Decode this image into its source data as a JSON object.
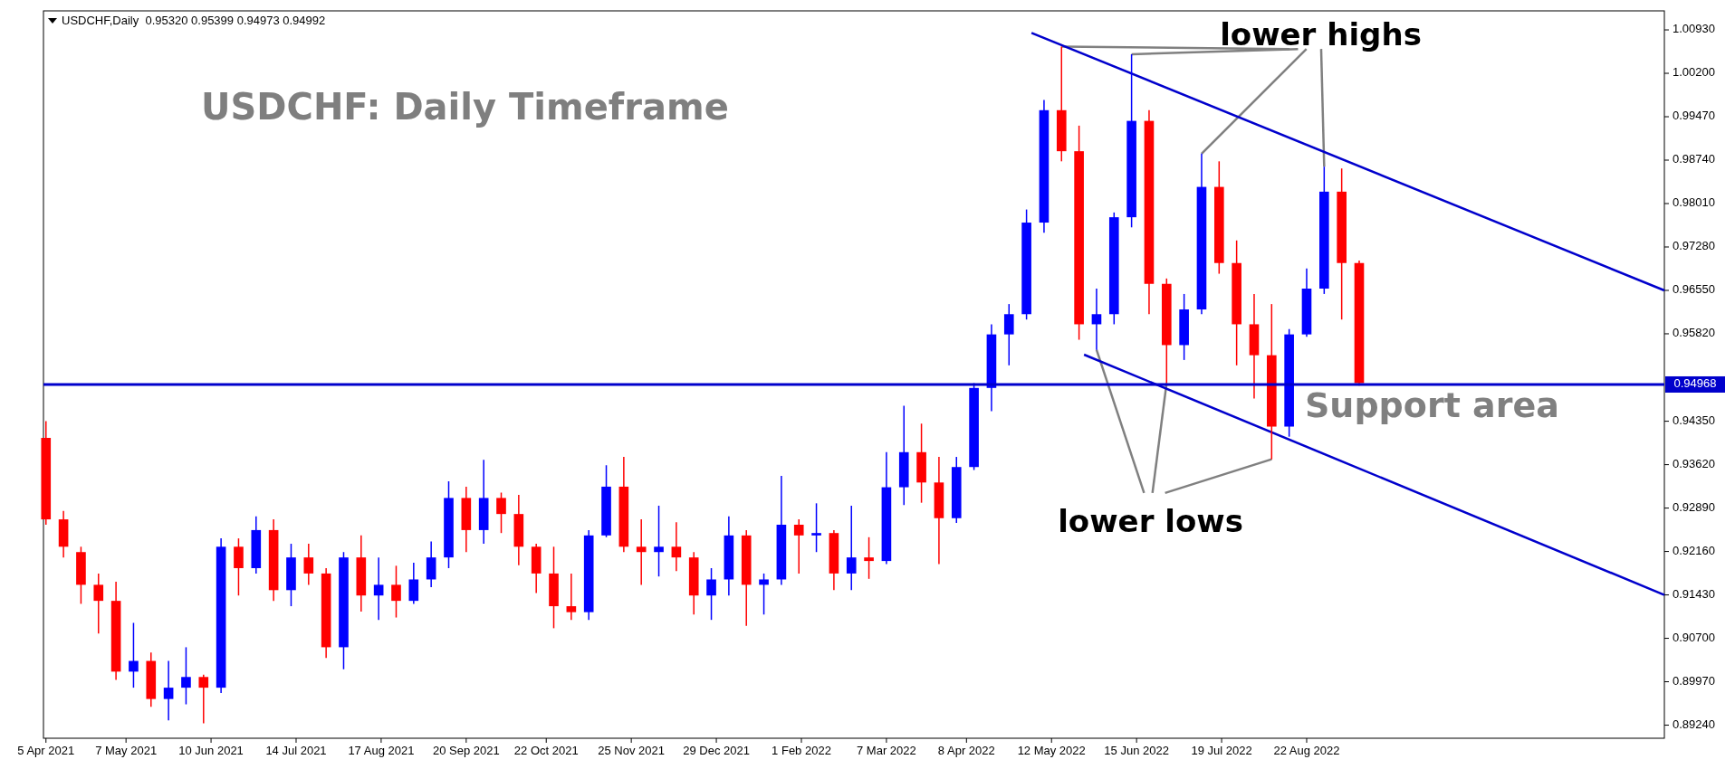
{
  "chart_data": {
    "type": "candlestick",
    "title": "USDCHF,Daily  0.95320 0.95399 0.94973 0.94992",
    "subtitle": "USDCHF: Daily Timeframe",
    "x": [
      "2021-04-05",
      "2021-04-12",
      "2021-04-19",
      "2021-04-26",
      "2021-05-03",
      "2021-05-10",
      "2021-05-17",
      "2021-05-24",
      "2021-05-31",
      "2021-06-07",
      "2021-06-14",
      "2021-06-21",
      "2021-06-28",
      "2021-07-05",
      "2021-07-12",
      "2021-07-19",
      "2021-07-26",
      "2021-08-02",
      "2021-08-09",
      "2021-08-16",
      "2021-08-23",
      "2021-08-30",
      "2021-09-06",
      "2021-09-13",
      "2021-09-20",
      "2021-09-27",
      "2021-10-04",
      "2021-10-11",
      "2021-10-18",
      "2021-10-25",
      "2021-11-01",
      "2021-11-08",
      "2021-11-15",
      "2021-11-22",
      "2021-11-29",
      "2021-12-06",
      "2021-12-13",
      "2021-12-20",
      "2021-12-27",
      "2022-01-03",
      "2022-01-10",
      "2022-01-17",
      "2022-01-24",
      "2022-01-31",
      "2022-02-07",
      "2022-02-14",
      "2022-02-21",
      "2022-02-28",
      "2022-03-07",
      "2022-03-14",
      "2022-03-21",
      "2022-03-28",
      "2022-04-04",
      "2022-04-11",
      "2022-04-18",
      "2022-04-25",
      "2022-05-02",
      "2022-05-09",
      "2022-05-16",
      "2022-05-23",
      "2022-05-30",
      "2022-06-06",
      "2022-06-13",
      "2022-06-20",
      "2022-06-27",
      "2022-07-04",
      "2022-07-11",
      "2022-07-18",
      "2022-07-25",
      "2022-08-01",
      "2022-08-08",
      "2022-08-15",
      "2022-08-22",
      "2022-08-29",
      "2022-09-05",
      "2022-09-12"
    ],
    "ohlc": [
      [
        0.9407,
        0.9435,
        0.9261,
        0.927
      ],
      [
        0.927,
        0.9284,
        0.9206,
        0.9224
      ],
      [
        0.9215,
        0.9224,
        0.9128,
        0.916
      ],
      [
        0.916,
        0.9179,
        0.9078,
        0.9133
      ],
      [
        0.9133,
        0.9165,
        0.9,
        0.9014
      ],
      [
        0.9014,
        0.9096,
        0.8987,
        0.9032
      ],
      [
        0.9032,
        0.9046,
        0.8955,
        0.8968
      ],
      [
        0.8968,
        0.9032,
        0.8932,
        0.8987
      ],
      [
        0.8987,
        0.9055,
        0.8959,
        0.9005
      ],
      [
        0.9005,
        0.9009,
        0.8927,
        0.8987
      ],
      [
        0.8987,
        0.9238,
        0.8978,
        0.9224
      ],
      [
        0.9224,
        0.9238,
        0.9142,
        0.9188
      ],
      [
        0.9188,
        0.9275,
        0.9179,
        0.9252
      ],
      [
        0.9252,
        0.927,
        0.9133,
        0.9151
      ],
      [
        0.9151,
        0.9229,
        0.9124,
        0.9206
      ],
      [
        0.9206,
        0.9229,
        0.916,
        0.9179
      ],
      [
        0.9179,
        0.9188,
        0.9037,
        0.9055
      ],
      [
        0.9055,
        0.9215,
        0.9018,
        0.9206
      ],
      [
        0.9206,
        0.9243,
        0.9115,
        0.9142
      ],
      [
        0.9142,
        0.9206,
        0.9101,
        0.916
      ],
      [
        0.916,
        0.9192,
        0.9105,
        0.9133
      ],
      [
        0.9133,
        0.9197,
        0.9128,
        0.9169
      ],
      [
        0.9169,
        0.9233,
        0.9156,
        0.9206
      ],
      [
        0.9206,
        0.9334,
        0.9188,
        0.9306
      ],
      [
        0.9306,
        0.9325,
        0.9215,
        0.9252
      ],
      [
        0.9252,
        0.937,
        0.9229,
        0.9306
      ],
      [
        0.9306,
        0.9315,
        0.9247,
        0.9279
      ],
      [
        0.9279,
        0.9311,
        0.9193,
        0.9224
      ],
      [
        0.9224,
        0.9229,
        0.9146,
        0.9179
      ],
      [
        0.9179,
        0.9224,
        0.9087,
        0.9124
      ],
      [
        0.9124,
        0.9179,
        0.9101,
        0.9114
      ],
      [
        0.9114,
        0.9252,
        0.9101,
        0.9243
      ],
      [
        0.9243,
        0.9361,
        0.924,
        0.9325
      ],
      [
        0.9325,
        0.9375,
        0.9215,
        0.9224
      ],
      [
        0.9224,
        0.927,
        0.916,
        0.9215
      ],
      [
        0.9215,
        0.9293,
        0.9174,
        0.9224
      ],
      [
        0.9224,
        0.9265,
        0.9183,
        0.9206
      ],
      [
        0.9206,
        0.9215,
        0.911,
        0.9142
      ],
      [
        0.9142,
        0.9188,
        0.9101,
        0.9169
      ],
      [
        0.9169,
        0.9275,
        0.9142,
        0.9243
      ],
      [
        0.9243,
        0.9252,
        0.9091,
        0.916
      ],
      [
        0.916,
        0.9179,
        0.911,
        0.9169
      ],
      [
        0.9169,
        0.9343,
        0.916,
        0.9261
      ],
      [
        0.9261,
        0.927,
        0.9179,
        0.9243
      ],
      [
        0.9243,
        0.9297,
        0.9215,
        0.9247
      ],
      [
        0.9247,
        0.9252,
        0.9151,
        0.9179
      ],
      [
        0.9179,
        0.9293,
        0.9151,
        0.9206
      ],
      [
        0.9206,
        0.924,
        0.917,
        0.92
      ],
      [
        0.92,
        0.9383,
        0.9195,
        0.9324
      ],
      [
        0.9324,
        0.9461,
        0.9294,
        0.9383
      ],
      [
        0.9383,
        0.9431,
        0.9298,
        0.9332
      ],
      [
        0.9332,
        0.9375,
        0.9195,
        0.9272
      ],
      [
        0.9272,
        0.9375,
        0.9264,
        0.9358
      ],
      [
        0.9358,
        0.9499,
        0.9353,
        0.9491
      ],
      [
        0.9491,
        0.9598,
        0.9452,
        0.9581
      ],
      [
        0.9581,
        0.9632,
        0.9529,
        0.9615
      ],
      [
        0.9615,
        0.9791,
        0.9606,
        0.9769
      ],
      [
        0.9769,
        0.9975,
        0.9752,
        0.9958
      ],
      [
        0.9958,
        1.0065,
        0.9872,
        0.9889
      ],
      [
        0.9889,
        0.9932,
        0.9572,
        0.9598
      ],
      [
        0.9598,
        0.9658,
        0.9555,
        0.9615
      ],
      [
        0.9615,
        0.9786,
        0.9598,
        0.9778
      ],
      [
        0.9778,
        1.0052,
        0.9761,
        0.994
      ],
      [
        0.994,
        0.9958,
        0.9615,
        0.9666
      ],
      [
        0.9666,
        0.9675,
        0.9499,
        0.9563
      ],
      [
        0.9563,
        0.9649,
        0.9538,
        0.9623
      ],
      [
        0.9623,
        0.9885,
        0.9615,
        0.9829
      ],
      [
        0.9829,
        0.9872,
        0.9683,
        0.9701
      ],
      [
        0.9701,
        0.9739,
        0.9529,
        0.9598
      ],
      [
        0.9598,
        0.9649,
        0.9473,
        0.9546
      ],
      [
        0.9546,
        0.9632,
        0.9371,
        0.9426
      ],
      [
        0.9426,
        0.959,
        0.9409,
        0.9581
      ],
      [
        0.9581,
        0.9692,
        0.9577,
        0.9658
      ],
      [
        0.9658,
        0.9863,
        0.9649,
        0.9821
      ],
      [
        0.9821,
        0.986,
        0.9606,
        0.9701
      ],
      [
        0.9701,
        0.9705,
        0.9495,
        0.9499
      ]
    ],
    "colors": [
      "#ff0000",
      "#ff0000",
      "#ff0000",
      "#ff0000",
      "#ff0000",
      "#0000ff",
      "#ff0000",
      "#0000ff",
      "#0000ff",
      "#ff0000",
      "#0000ff",
      "#ff0000",
      "#0000ff",
      "#ff0000",
      "#0000ff",
      "#ff0000",
      "#ff0000",
      "#0000ff",
      "#ff0000",
      "#0000ff",
      "#ff0000",
      "#0000ff",
      "#0000ff",
      "#0000ff",
      "#ff0000",
      "#0000ff",
      "#ff0000",
      "#ff0000",
      "#ff0000",
      "#ff0000",
      "#ff0000",
      "#0000ff",
      "#0000ff",
      "#ff0000",
      "#ff0000",
      "#0000ff",
      "#ff0000",
      "#ff0000",
      "#0000ff",
      "#0000ff",
      "#ff0000",
      "#0000ff",
      "#0000ff",
      "#ff0000",
      "#0000ff",
      "#ff0000",
      "#0000ff",
      "#ff0000",
      "#0000ff",
      "#0000ff",
      "#ff0000",
      "#ff0000",
      "#0000ff",
      "#0000ff",
      "#0000ff",
      "#0000ff",
      "#0000ff",
      "#0000ff",
      "#ff0000",
      "#ff0000",
      "#0000ff",
      "#0000ff",
      "#0000ff",
      "#ff0000",
      "#ff0000",
      "#0000ff",
      "#0000ff",
      "#ff0000",
      "#ff0000",
      "#ff0000",
      "#ff0000",
      "#0000ff",
      "#0000ff",
      "#0000ff",
      "#ff0000",
      "#ff0000"
    ],
    "series": [
      {
        "type": "line",
        "color": "#0000cc",
        "x": [
          "2022-05-04",
          "2023-01-12"
        ],
        "values": [
          1.0088,
          0.9655
        ]
      },
      {
        "type": "line",
        "color": "#0000cc",
        "x": [
          "2022-05-25",
          "2023-01-12"
        ],
        "values": [
          0.9547,
          0.9143
        ]
      }
    ],
    "xlim": [
      "2021-04-04",
      "2023-01-12"
    ],
    "xticks": [
      {
        "value": "2021-04-05",
        "label": "5 Apr 2021"
      },
      {
        "value": "2021-05-07",
        "label": "7 May 2021"
      },
      {
        "value": "2021-06-10",
        "label": "10 Jun 2021"
      },
      {
        "value": "2021-07-14",
        "label": "14 Jul 2021"
      },
      {
        "value": "2021-08-17",
        "label": "17 Aug 2021"
      },
      {
        "value": "2021-09-20",
        "label": "20 Sep 2021"
      },
      {
        "value": "2021-10-22",
        "label": "22 Oct 2021"
      },
      {
        "value": "2021-11-25",
        "label": "25 Nov 2021"
      },
      {
        "value": "2021-12-29",
        "label": "29 Dec 2021"
      },
      {
        "value": "2022-02-01",
        "label": "1 Feb 2022"
      },
      {
        "value": "2022-03-07",
        "label": "7 Mar 2022"
      },
      {
        "value": "2022-04-08",
        "label": "8 Apr 2022"
      },
      {
        "value": "2022-05-12",
        "label": "12 May 2022"
      },
      {
        "value": "2022-06-15",
        "label": "15 Jun 2022"
      },
      {
        "value": "2022-07-19",
        "label": "19 Jul 2022"
      },
      {
        "value": "2022-08-22",
        "label": "22 Aug 2022"
      }
    ],
    "ylim": [
      0.8902,
      1.0125
    ],
    "yticks": [
      {
        "value": 1.0093,
        "label": "1.00930"
      },
      {
        "value": 1.002,
        "label": "1.00200"
      },
      {
        "value": 0.9947,
        "label": "0.99470"
      },
      {
        "value": 0.9874,
        "label": "0.98740"
      },
      {
        "value": 0.9801,
        "label": "0.98010"
      },
      {
        "value": 0.9728,
        "label": "0.97280"
      },
      {
        "value": 0.9655,
        "label": "0.96550"
      },
      {
        "value": 0.9582,
        "label": "0.95820"
      },
      {
        "value": 0.9435,
        "label": "0.94350"
      },
      {
        "value": 0.9362,
        "label": "0.93620"
      },
      {
        "value": 0.9289,
        "label": "0.92890"
      },
      {
        "value": 0.9216,
        "label": "0.92160"
      },
      {
        "value": 0.9143,
        "label": "0.91430"
      },
      {
        "value": 0.907,
        "label": "0.90700"
      },
      {
        "value": 0.8997,
        "label": "0.89970"
      },
      {
        "value": 0.8924,
        "label": "0.89240"
      }
    ],
    "ref_lines": [
      {
        "axis": "y",
        "value": 0.94968,
        "label": "0.94968",
        "color": "#0000cc"
      }
    ],
    "annotations": [
      "Support area",
      {
        "text": "lower highs",
        "x": "2022-05-16",
        "y": 1.0065
      },
      {
        "text": "lower lows",
        "x": "2022-05-30",
        "y": 0.9555
      }
    ]
  }
}
